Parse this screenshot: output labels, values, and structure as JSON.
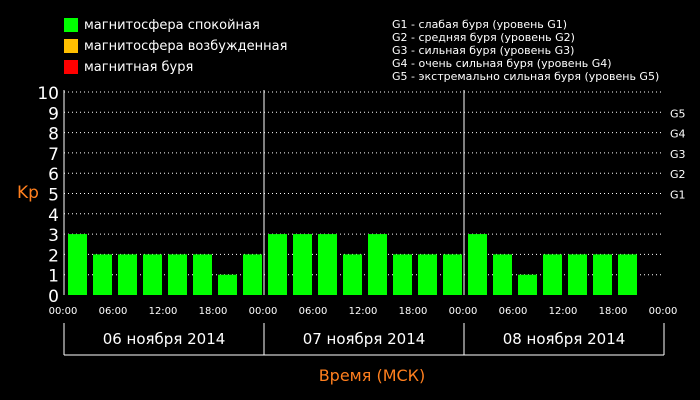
{
  "legend": [
    {
      "label": "магнитосфера спокойная",
      "color": "#00ff00"
    },
    {
      "label": "магнитосфера возбужденная",
      "color": "#ffbf00"
    },
    {
      "label": "магнитная буря",
      "color": "#ff0000"
    }
  ],
  "g_legend": [
    "G1 - слабая буря (уровень G1)",
    "G2 - средняя буря (уровень G2)",
    "G3 - сильная буря (уровень G3)",
    "G4 - очень сильная буря (уровень G4)",
    "G5 - экстремально сильная буря (уровень G5)"
  ],
  "colors": {
    "accent": "#ff7f1e",
    "text": "#ffffff",
    "background": "#000000",
    "grid": "#ffffff"
  },
  "chart_data": {
    "type": "bar",
    "ylabel": "Kp",
    "xlabel": "Время (МСК)",
    "ylim": [
      0,
      10
    ],
    "y_ticks": [
      "0",
      "1",
      "2",
      "3",
      "4",
      "5",
      "6",
      "7",
      "8",
      "9",
      "10"
    ],
    "g_levels": [
      {
        "label": "G1",
        "kp": 5
      },
      {
        "label": "G2",
        "kp": 6
      },
      {
        "label": "G3",
        "kp": 7
      },
      {
        "label": "G4",
        "kp": 8
      },
      {
        "label": "G5",
        "kp": 9
      }
    ],
    "x_tick_labels": [
      "00:00",
      "06:00",
      "12:00",
      "18:00",
      "00:00",
      "06:00",
      "12:00",
      "18:00",
      "00:00",
      "06:00",
      "12:00",
      "18:00",
      "00:00"
    ],
    "days": [
      "06 ноября 2014",
      "07 ноября 2014",
      "08 ноября 2014"
    ],
    "bars_per_day": 8,
    "values": [
      3,
      2,
      2,
      2,
      2,
      2,
      1,
      2,
      3,
      3,
      3,
      2,
      3,
      2,
      2,
      2,
      3,
      2,
      1,
      2,
      2,
      2,
      2
    ],
    "grid": true
  }
}
